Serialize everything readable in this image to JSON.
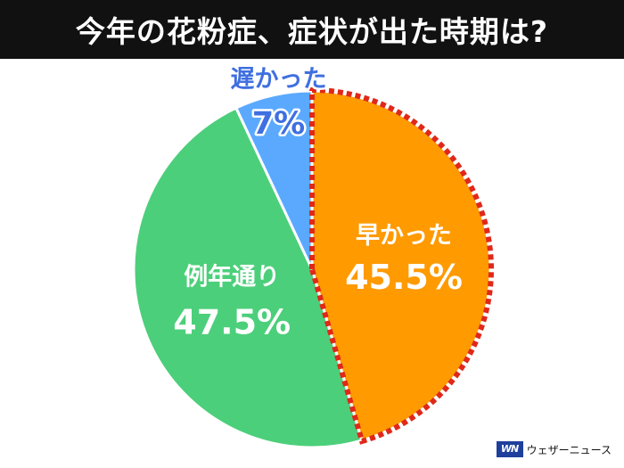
{
  "header": {
    "title": "今年の花粉症、症状が出た時期は?"
  },
  "brand": {
    "logo_text": "WN",
    "name": "ウェザーニュース"
  },
  "colors": {
    "early": "#ff9a00",
    "normal": "#4ccf7a",
    "late": "#5aa9ff",
    "highlight_border": "#e0281a",
    "label_text": "#ffffff",
    "late_label_text": "#3f6fe0"
  },
  "chart_data": {
    "type": "pie",
    "title": "今年の花粉症、症状が出た時期は?",
    "start_angle_deg": 0,
    "direction": "clockwise",
    "slices": [
      {
        "label": "早かった",
        "value": 45.5,
        "value_label": "45.5%",
        "color": "#ff9a00",
        "highlighted": true
      },
      {
        "label": "例年通り",
        "value": 47.5,
        "value_label": "47.5%",
        "color": "#4ccf7a",
        "highlighted": false
      },
      {
        "label": "遅かった",
        "value": 7,
        "value_label": "7%",
        "color": "#5aa9ff",
        "highlighted": false
      }
    ]
  }
}
